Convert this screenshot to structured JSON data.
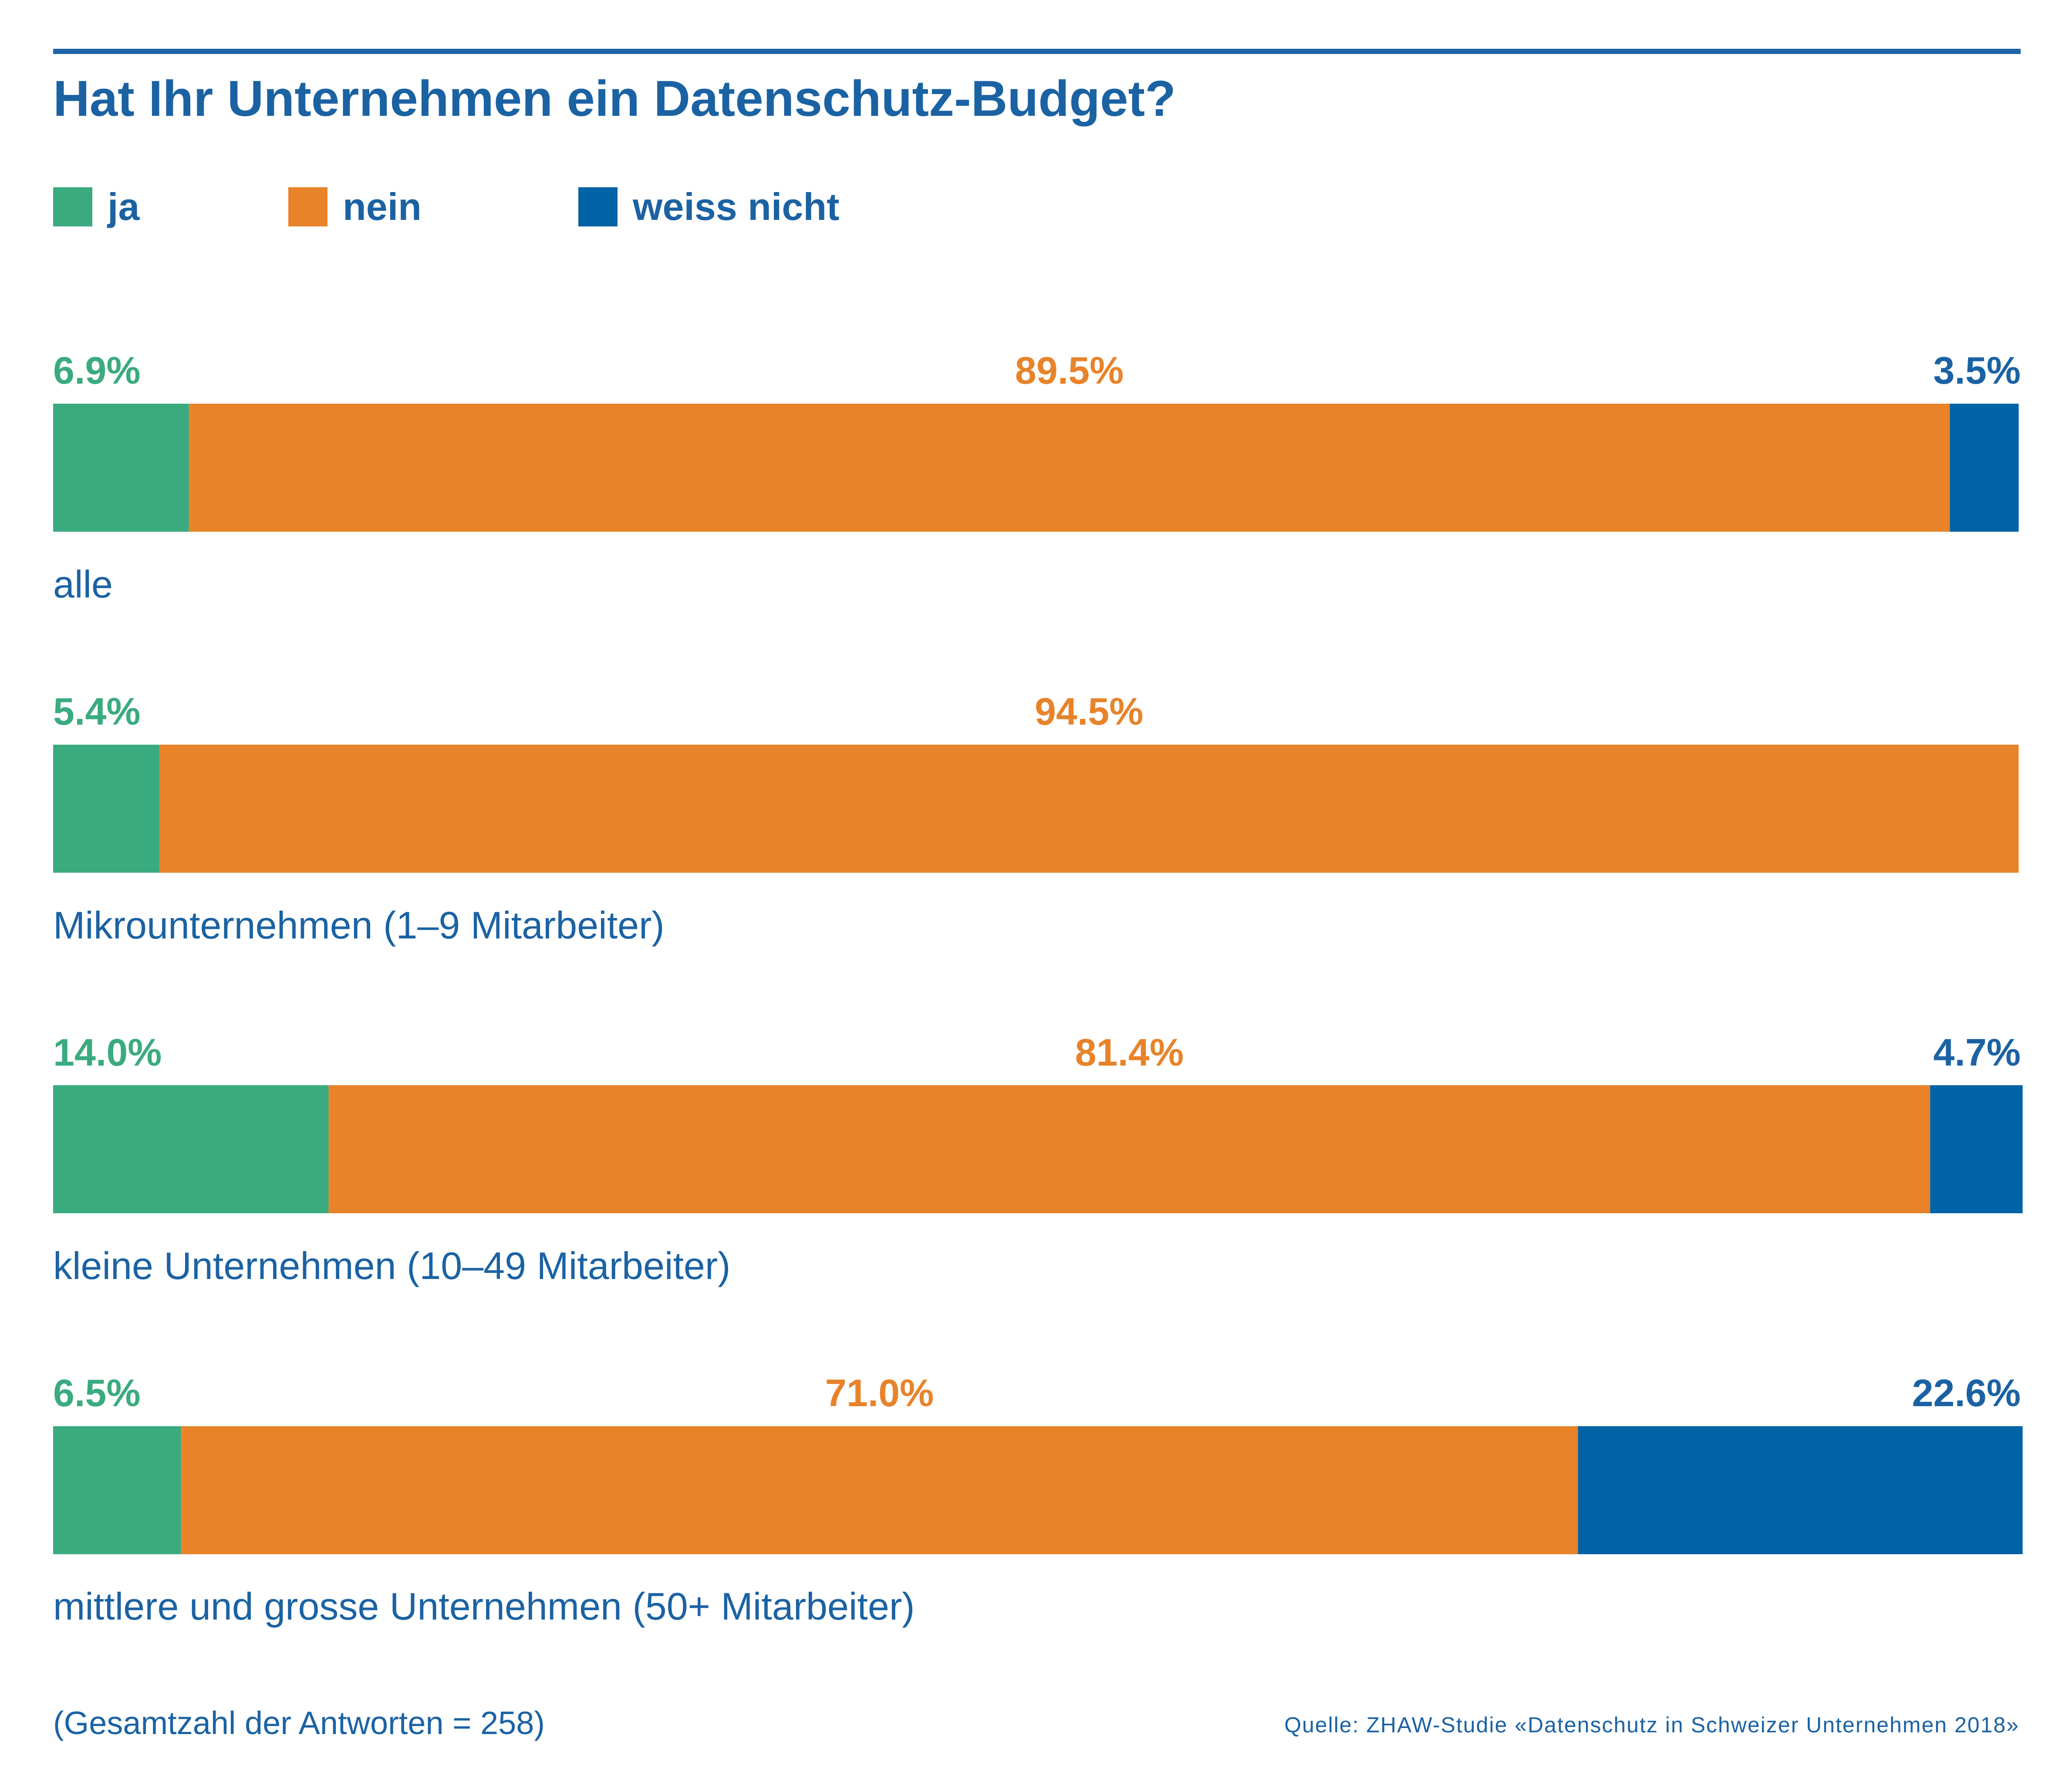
{
  "chart_data": {
    "type": "bar",
    "orientation": "horizontal",
    "stacked": true,
    "normalized": "percent",
    "title": "Hat Ihr Unternehmen ein Datenschutz-Budget?",
    "categories": [
      "alle",
      "Mikrounternehmen (1–9 Mitarbeiter)",
      "kleine Unternehmen (10–49 Mitarbeiter)",
      "mittlere und grosse Unternehmen (50+ Mitarbeiter)"
    ],
    "series": [
      {
        "name": "ja",
        "color": "#3aab7f",
        "values": [
          6.9,
          5.4,
          14.0,
          6.5
        ],
        "labels": [
          "6.9%",
          "5.4%",
          "14.0%",
          "6.5%"
        ]
      },
      {
        "name": "nein",
        "color": "#e8832a",
        "values": [
          89.5,
          94.5,
          81.4,
          71.0
        ],
        "labels": [
          "89.5%",
          "94.5%",
          "81.4%",
          "71.0%"
        ]
      },
      {
        "name": "weiss nicht",
        "color": "#0063a6",
        "values": [
          3.5,
          0,
          4.7,
          22.6
        ],
        "labels": [
          "3.5%",
          "",
          "4.7%",
          "22.6%"
        ]
      }
    ],
    "legend_position": "top-left",
    "grid": false,
    "xlim": [
      0,
      100
    ]
  },
  "note": "(Gesamtzahl der Antworten = 258)",
  "source": "Quelle: ZHAW-Studie «Datenschutz in Schweizer Unternehmen 2018»",
  "colors": {
    "text_blue": "#1b62a3",
    "rule": "#1d63a8"
  }
}
